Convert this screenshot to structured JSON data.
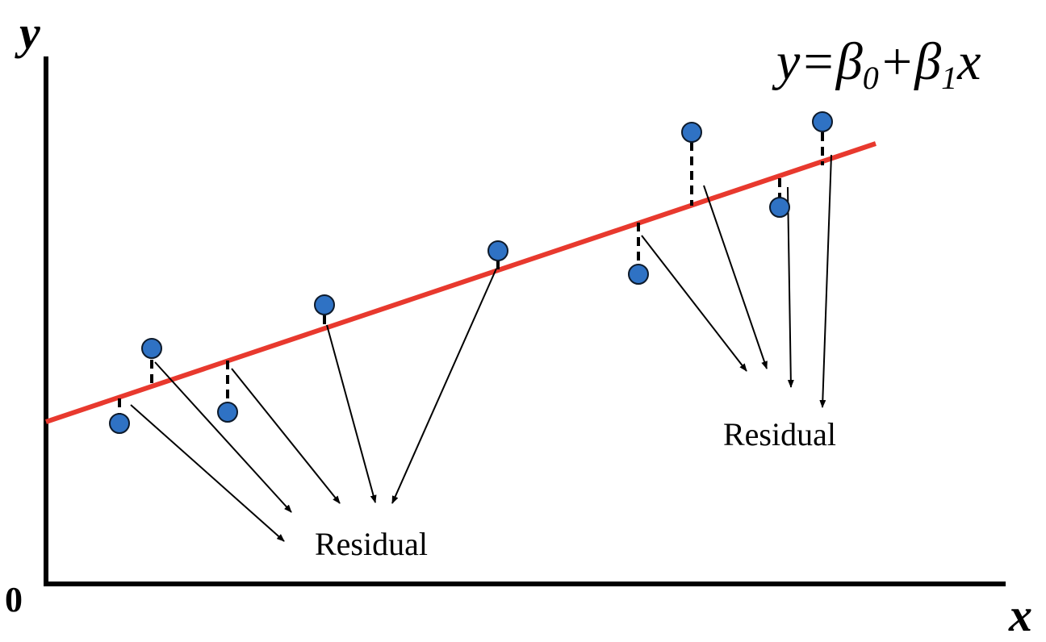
{
  "axes": {
    "y_label": "y",
    "x_label": "x",
    "origin_label": "0"
  },
  "equation": {
    "y": "y",
    "eq": "=",
    "beta": "β",
    "sub0": "0",
    "plus": "+",
    "sub1": "1",
    "x": "x"
  },
  "labels": {
    "residual_left": "Residual",
    "residual_right": "Residual"
  },
  "colors": {
    "line": "#e8392e",
    "point": "#2f72c4",
    "point_outline": "#0d1a2b",
    "axis": "#000000"
  }
}
